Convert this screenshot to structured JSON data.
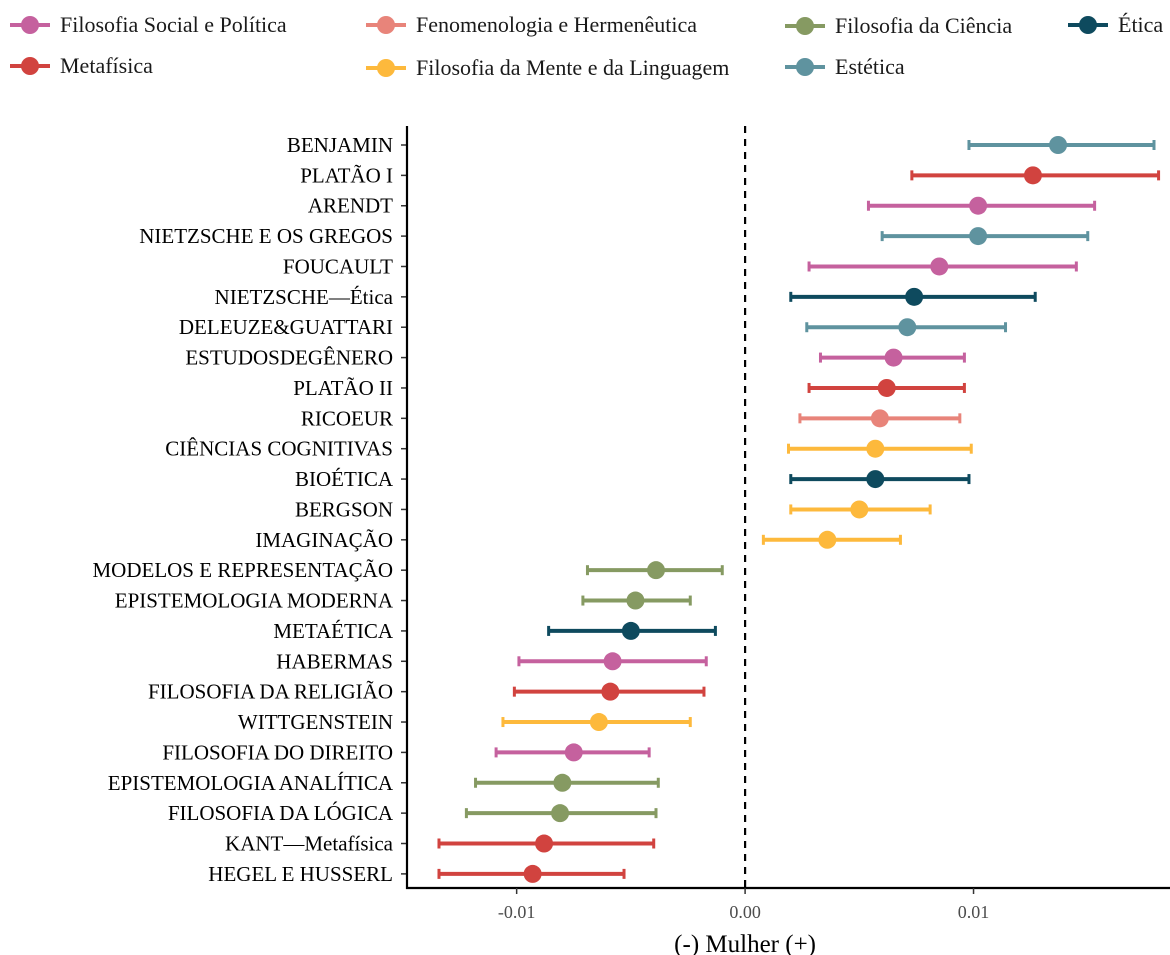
{
  "legend": [
    {
      "label": "Filosofia Social e Política",
      "color": "#C5619E"
    },
    {
      "label": "Metafísica",
      "color": "#D1433F"
    },
    {
      "label": "Fenomenologia e Hermenêutica",
      "color": "#E8847A"
    },
    {
      "label": "Filosofia da Mente e da Linguagem",
      "color": "#FDB93C"
    },
    {
      "label": "Filosofia da Ciência",
      "color": "#869A62"
    },
    {
      "label": "Estética",
      "color": "#5F939F"
    },
    {
      "label": "Ética",
      "color": "#0E4A5E"
    }
  ],
  "chart_data": {
    "type": "scatter",
    "subtype": "dot-and-whisker",
    "xlabel": "(-) Mulher (+)",
    "xlim": [
      -0.0148,
      0.0186
    ],
    "xticks": [
      -0.01,
      0.0,
      0.01
    ],
    "xtick_labels": [
      "-0.01",
      "0.00",
      "0.01"
    ],
    "reference_line": 0,
    "legend_position": "top",
    "grid": false,
    "rows": [
      {
        "label": "BENJAMIN",
        "group": "Estética",
        "estimate": 0.0137,
        "low": 0.0098,
        "high": 0.0179
      },
      {
        "label": "PLATÃO I",
        "group": "Metafísica",
        "estimate": 0.0126,
        "low": 0.0073,
        "high": 0.0181
      },
      {
        "label": "ARENDT",
        "group": "Filosofia Social e Política",
        "estimate": 0.0102,
        "low": 0.0054,
        "high": 0.0153
      },
      {
        "label": "NIETZSCHE E OS GREGOS",
        "group": "Estética",
        "estimate": 0.0102,
        "low": 0.006,
        "high": 0.015
      },
      {
        "label": "FOUCAULT",
        "group": "Filosofia Social e Política",
        "estimate": 0.0085,
        "low": 0.0028,
        "high": 0.0145
      },
      {
        "label": "NIETZSCHE—Ética",
        "group": "Ética",
        "estimate": 0.0074,
        "low": 0.002,
        "high": 0.0127
      },
      {
        "label": "DELEUZE&GUATTARI",
        "group": "Estética",
        "estimate": 0.0071,
        "low": 0.0027,
        "high": 0.0114
      },
      {
        "label": "ESTUDOSDEGÊNERO",
        "group": "Filosofia Social e Política",
        "estimate": 0.0065,
        "low": 0.0033,
        "high": 0.0096
      },
      {
        "label": "PLATÃO II",
        "group": "Metafísica",
        "estimate": 0.0062,
        "low": 0.0028,
        "high": 0.0096
      },
      {
        "label": "RICOEUR",
        "group": "Fenomenologia e Hermenêutica",
        "estimate": 0.0059,
        "low": 0.0024,
        "high": 0.0094
      },
      {
        "label": "CIÊNCIAS COGNITIVAS",
        "group": "Filosofia da Mente e da Linguagem",
        "estimate": 0.0057,
        "low": 0.0019,
        "high": 0.0099
      },
      {
        "label": "BIOÉTICA",
        "group": "Ética",
        "estimate": 0.0057,
        "low": 0.002,
        "high": 0.0098
      },
      {
        "label": "BERGSON",
        "group": "Filosofia da Mente e da Linguagem",
        "estimate": 0.005,
        "low": 0.002,
        "high": 0.0081
      },
      {
        "label": "IMAGINAÇÃO",
        "group": "Filosofia da Mente e da Linguagem",
        "estimate": 0.0036,
        "low": 0.0008,
        "high": 0.0068
      },
      {
        "label": "MODELOS E REPRESENTAÇÃO",
        "group": "Filosofia da Ciência",
        "estimate": -0.0039,
        "low": -0.0069,
        "high": -0.001
      },
      {
        "label": "EPISTEMOLOGIA MODERNA",
        "group": "Filosofia da Ciência",
        "estimate": -0.0048,
        "low": -0.0071,
        "high": -0.0024
      },
      {
        "label": "METAÉTICA",
        "group": "Ética",
        "estimate": -0.005,
        "low": -0.0086,
        "high": -0.0013
      },
      {
        "label": "HABERMAS",
        "group": "Filosofia Social e Política",
        "estimate": -0.0058,
        "low": -0.0099,
        "high": -0.0017
      },
      {
        "label": "FILOSOFIA DA RELIGIÃO",
        "group": "Metafísica",
        "estimate": -0.0059,
        "low": -0.0101,
        "high": -0.0018
      },
      {
        "label": "WITTGENSTEIN",
        "group": "Filosofia da Mente e da Linguagem",
        "estimate": -0.0064,
        "low": -0.0106,
        "high": -0.0024
      },
      {
        "label": "FILOSOFIA DO DIREITO",
        "group": "Filosofia Social e Política",
        "estimate": -0.0075,
        "low": -0.0109,
        "high": -0.0042
      },
      {
        "label": "EPISTEMOLOGIA ANALÍTICA",
        "group": "Filosofia da Ciência",
        "estimate": -0.008,
        "low": -0.0118,
        "high": -0.0038
      },
      {
        "label": "FILOSOFIA DA LÓGICA",
        "group": "Filosofia da Ciência",
        "estimate": -0.0081,
        "low": -0.0122,
        "high": -0.0039
      },
      {
        "label": "KANT—Metafísica",
        "group": "Metafísica",
        "estimate": -0.0088,
        "low": -0.0134,
        "high": -0.004
      },
      {
        "label": "HEGEL E  HUSSERL",
        "group": "Metafísica",
        "estimate": -0.0093,
        "low": -0.0134,
        "high": -0.0053
      }
    ]
  }
}
